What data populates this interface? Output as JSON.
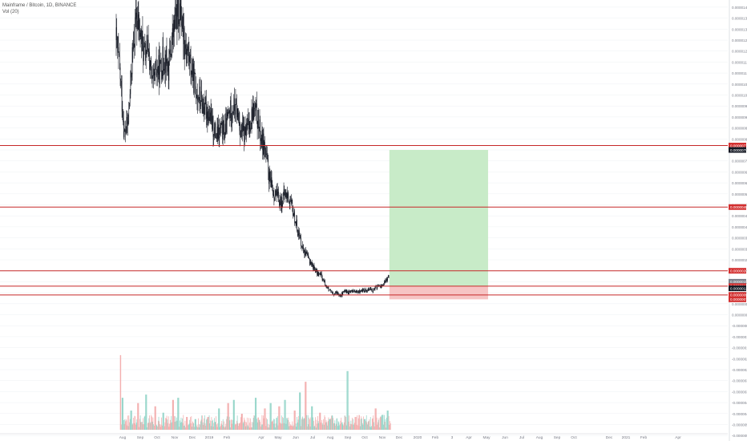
{
  "header": {
    "title": "Mainframe / Bitcoin, 1D, BINANCE",
    "volume_label": "Vol (20)"
  },
  "colors": {
    "candle": "#131722",
    "vol_up": "#8fd3c6",
    "vol_down": "#f2a9a9",
    "hline": "#c62828",
    "target_zone": "#c8ebc8",
    "stop_zone": "#f6c4c4",
    "label_red": "#d32f2f",
    "label_dark": "#131722",
    "label_gray": "#7b7f8a",
    "grid": "#eef0f3",
    "axis_text": "#787b86"
  },
  "chart_data": {
    "type": "line",
    "subtype": "candlestick-with-volume",
    "symbol": "Mainframe / Bitcoin, 1D, BINANCE",
    "volume_series": "Vol (20)",
    "x_ticks": [
      "Aug",
      "Sep",
      "Oct",
      "Nov",
      "Dec",
      "2019",
      "Feb",
      "Apr",
      "May",
      "Jun",
      "Jul",
      "Aug",
      "Sep",
      "Oct",
      "Nov",
      "Dec",
      "2020",
      "Feb",
      "3",
      "Apr",
      "May",
      "Jun",
      "Jul",
      "Aug",
      "Sep",
      "Oct",
      "Dec",
      "2021",
      "Feb",
      "Apr"
    ],
    "y_ticks": [
      "0.0000140",
      "0.0000135",
      "0.0000130",
      "0.0000125",
      "0.0000120",
      "0.0000115",
      "0.0000110",
      "0.0000105",
      "0.0000100",
      "0.0000095",
      "0.0000090",
      "0.0000085",
      "0.0000080",
      "0.0000075",
      "0.0000070",
      "0.0000065",
      "0.0000060",
      "0.0000055",
      "0.0000050",
      "0.0000045",
      "0.0000040",
      "0.0000035",
      "0.0000030",
      "0.0000025",
      "0.0000020",
      "0.0000015",
      "0.0000010",
      "0.0000005",
      "0.0000000",
      "-0.0000005",
      "-0.0000010",
      "-0.0000015",
      "-0.0000020",
      "-0.0000025",
      "-0.0000030",
      "-0.0000035",
      "-0.0000040",
      "-0.0000045",
      "-0.0000050",
      "-0.0000055"
    ],
    "price_path": [
      [
        "2018-07-25",
        1.25e-05
      ],
      [
        "2018-08-01",
        1.08e-05
      ],
      [
        "2018-08-08",
        8.2e-06
      ],
      [
        "2018-08-15",
        8.8e-06
      ],
      [
        "2018-08-22",
        1.18e-05
      ],
      [
        "2018-08-29",
        1.35e-05
      ],
      [
        "2018-09-05",
        1.28e-05
      ],
      [
        "2018-09-12",
        1.18e-05
      ],
      [
        "2018-09-19",
        1.21e-05
      ],
      [
        "2018-09-26",
        1.04e-05
      ],
      [
        "2018-10-03",
        1.11e-05
      ],
      [
        "2018-10-10",
        1.12e-05
      ],
      [
        "2018-10-17",
        1.18e-05
      ],
      [
        "2018-10-24",
        1.12e-05
      ],
      [
        "2018-10-31",
        1.26e-05
      ],
      [
        "2018-11-07",
        1.37e-05
      ],
      [
        "2018-11-14",
        1.4e-05
      ],
      [
        "2018-11-21",
        1.25e-05
      ],
      [
        "2018-11-28",
        1.18e-05
      ],
      [
        "2018-12-05",
        1.09e-05
      ],
      [
        "2018-12-12",
        1.02e-05
      ],
      [
        "2018-12-19",
        9.8e-06
      ],
      [
        "2018-12-26",
        9.4e-06
      ],
      [
        "2019-01-02",
        9.2e-06
      ],
      [
        "2019-01-09",
        8.6e-06
      ],
      [
        "2019-01-16",
        8.1e-06
      ],
      [
        "2019-01-23",
        8.4e-06
      ],
      [
        "2019-01-30",
        8.3e-06
      ],
      [
        "2019-02-06",
        9.1e-06
      ],
      [
        "2019-02-13",
        9.5e-06
      ],
      [
        "2019-02-20",
        9.3e-06
      ],
      [
        "2019-02-27",
        8.4e-06
      ],
      [
        "2019-03-06",
        8.2e-06
      ],
      [
        "2019-03-13",
        8.6e-06
      ],
      [
        "2019-03-20",
        9.3e-06
      ],
      [
        "2019-03-27",
        9.1e-06
      ],
      [
        "2019-04-03",
        8.1e-06
      ],
      [
        "2019-04-10",
        7.6e-06
      ],
      [
        "2019-04-17",
        6.3e-06
      ],
      [
        "2019-04-24",
        5.6e-06
      ],
      [
        "2019-05-01",
        5.4e-06
      ],
      [
        "2019-05-08",
        5.1e-06
      ],
      [
        "2019-05-15",
        5.5e-06
      ],
      [
        "2019-05-22",
        5.3e-06
      ],
      [
        "2019-05-29",
        4.7e-06
      ],
      [
        "2019-06-05",
        4e-06
      ],
      [
        "2019-06-12",
        3.3e-06
      ],
      [
        "2019-06-19",
        2.8e-06
      ],
      [
        "2019-06-26",
        2.5e-06
      ],
      [
        "2019-07-03",
        2.2e-06
      ],
      [
        "2019-07-10",
        1.9e-06
      ],
      [
        "2019-07-17",
        1.8e-06
      ],
      [
        "2019-07-24",
        1.4e-06
      ],
      [
        "2019-07-31",
        1.1e-06
      ],
      [
        "2019-08-07",
        9e-07
      ],
      [
        "2019-08-14",
        1e-06
      ],
      [
        "2019-08-21",
        9e-07
      ],
      [
        "2019-08-28",
        1.1e-06
      ],
      [
        "2019-09-04",
        1e-06
      ],
      [
        "2019-09-11",
        1.1e-06
      ],
      [
        "2019-09-18",
        1e-06
      ],
      [
        "2019-09-25",
        1.1e-06
      ],
      [
        "2019-10-02",
        1.1e-06
      ],
      [
        "2019-10-09",
        1.2e-06
      ],
      [
        "2019-10-16",
        1.1e-06
      ],
      [
        "2019-10-23",
        1.3e-06
      ],
      [
        "2019-10-30",
        1.3e-06
      ],
      [
        "2019-11-06",
        1.5e-06
      ],
      [
        "2019-11-13",
        1.8e-06
      ]
    ],
    "horizontal_levels": [
      {
        "price_label": "0.0000077",
        "value": 7.7e-06
      },
      {
        "price_label": "0.0000049",
        "value": 4.9e-06
      },
      {
        "price_label": "0.0000020",
        "value": 2e-06
      },
      {
        "price_label": "0.0000013",
        "value": 1.3e-06
      },
      {
        "price_label": "0.0000009",
        "value": 9e-07
      }
    ],
    "axis_labels": [
      {
        "text": "0.0000077",
        "style": "red",
        "value": 7.7e-06
      },
      {
        "text": "0.0000075",
        "style": "dark",
        "value": 7.5e-06
      },
      {
        "text": "0.0000049",
        "style": "red",
        "value": 4.9e-06
      },
      {
        "text": "0.0000020",
        "style": "red",
        "value": 2e-06
      },
      {
        "text": "0.0000015",
        "style": "gray",
        "value": 1.5e-06
      },
      {
        "text": "0.0000013",
        "style": "red",
        "value": 1.3e-06
      },
      {
        "text": "0.0000012",
        "style": "dark",
        "value": 1.2e-06
      },
      {
        "text": "0.0000009",
        "style": "red",
        "value": 9e-07
      },
      {
        "text": "0.0000007",
        "style": "red",
        "value": 7e-07
      }
    ],
    "position_tool": {
      "start": "2019-11-13",
      "end": "2020-05-03",
      "target": 7.5e-06,
      "entry": 1.3e-06,
      "stop": 7e-07
    },
    "volume_profile": [
      [
        "2018-08-01",
        0.7,
        "down"
      ],
      [
        "2018-08-05",
        0.3,
        "up"
      ],
      [
        "2018-08-20",
        0.18,
        "up"
      ],
      [
        "2018-09-01",
        0.25,
        "down"
      ],
      [
        "2018-09-15",
        0.33,
        "up"
      ],
      [
        "2018-10-01",
        0.22,
        "down"
      ],
      [
        "2018-10-15",
        0.16,
        "up"
      ],
      [
        "2018-11-01",
        0.28,
        "down"
      ],
      [
        "2018-11-10",
        0.3,
        "up"
      ],
      [
        "2018-11-25",
        0.12,
        "down"
      ],
      [
        "2018-12-10",
        0.1,
        "up"
      ],
      [
        "2019-01-01",
        0.12,
        "down"
      ],
      [
        "2019-01-20",
        0.2,
        "up"
      ],
      [
        "2019-02-05",
        0.25,
        "down"
      ],
      [
        "2019-02-15",
        0.28,
        "up"
      ],
      [
        "2019-03-01",
        0.15,
        "down"
      ],
      [
        "2019-03-25",
        0.3,
        "up"
      ],
      [
        "2019-04-10",
        0.2,
        "down"
      ],
      [
        "2019-04-20",
        0.25,
        "up"
      ],
      [
        "2019-05-05",
        0.22,
        "down"
      ],
      [
        "2019-05-15",
        0.28,
        "up"
      ],
      [
        "2019-06-01",
        0.18,
        "down"
      ],
      [
        "2019-06-10",
        0.35,
        "up"
      ],
      [
        "2019-06-20",
        0.45,
        "down"
      ],
      [
        "2019-07-01",
        0.22,
        "up"
      ],
      [
        "2019-07-15",
        0.16,
        "down"
      ],
      [
        "2019-08-01",
        0.1,
        "up"
      ],
      [
        "2019-08-20",
        0.08,
        "down"
      ],
      [
        "2019-09-01",
        0.55,
        "up"
      ],
      [
        "2019-09-15",
        0.12,
        "down"
      ],
      [
        "2019-10-01",
        0.1,
        "up"
      ],
      [
        "2019-10-20",
        0.2,
        "down"
      ],
      [
        "2019-11-01",
        0.14,
        "up"
      ],
      [
        "2019-11-10",
        0.18,
        "up"
      ]
    ]
  }
}
